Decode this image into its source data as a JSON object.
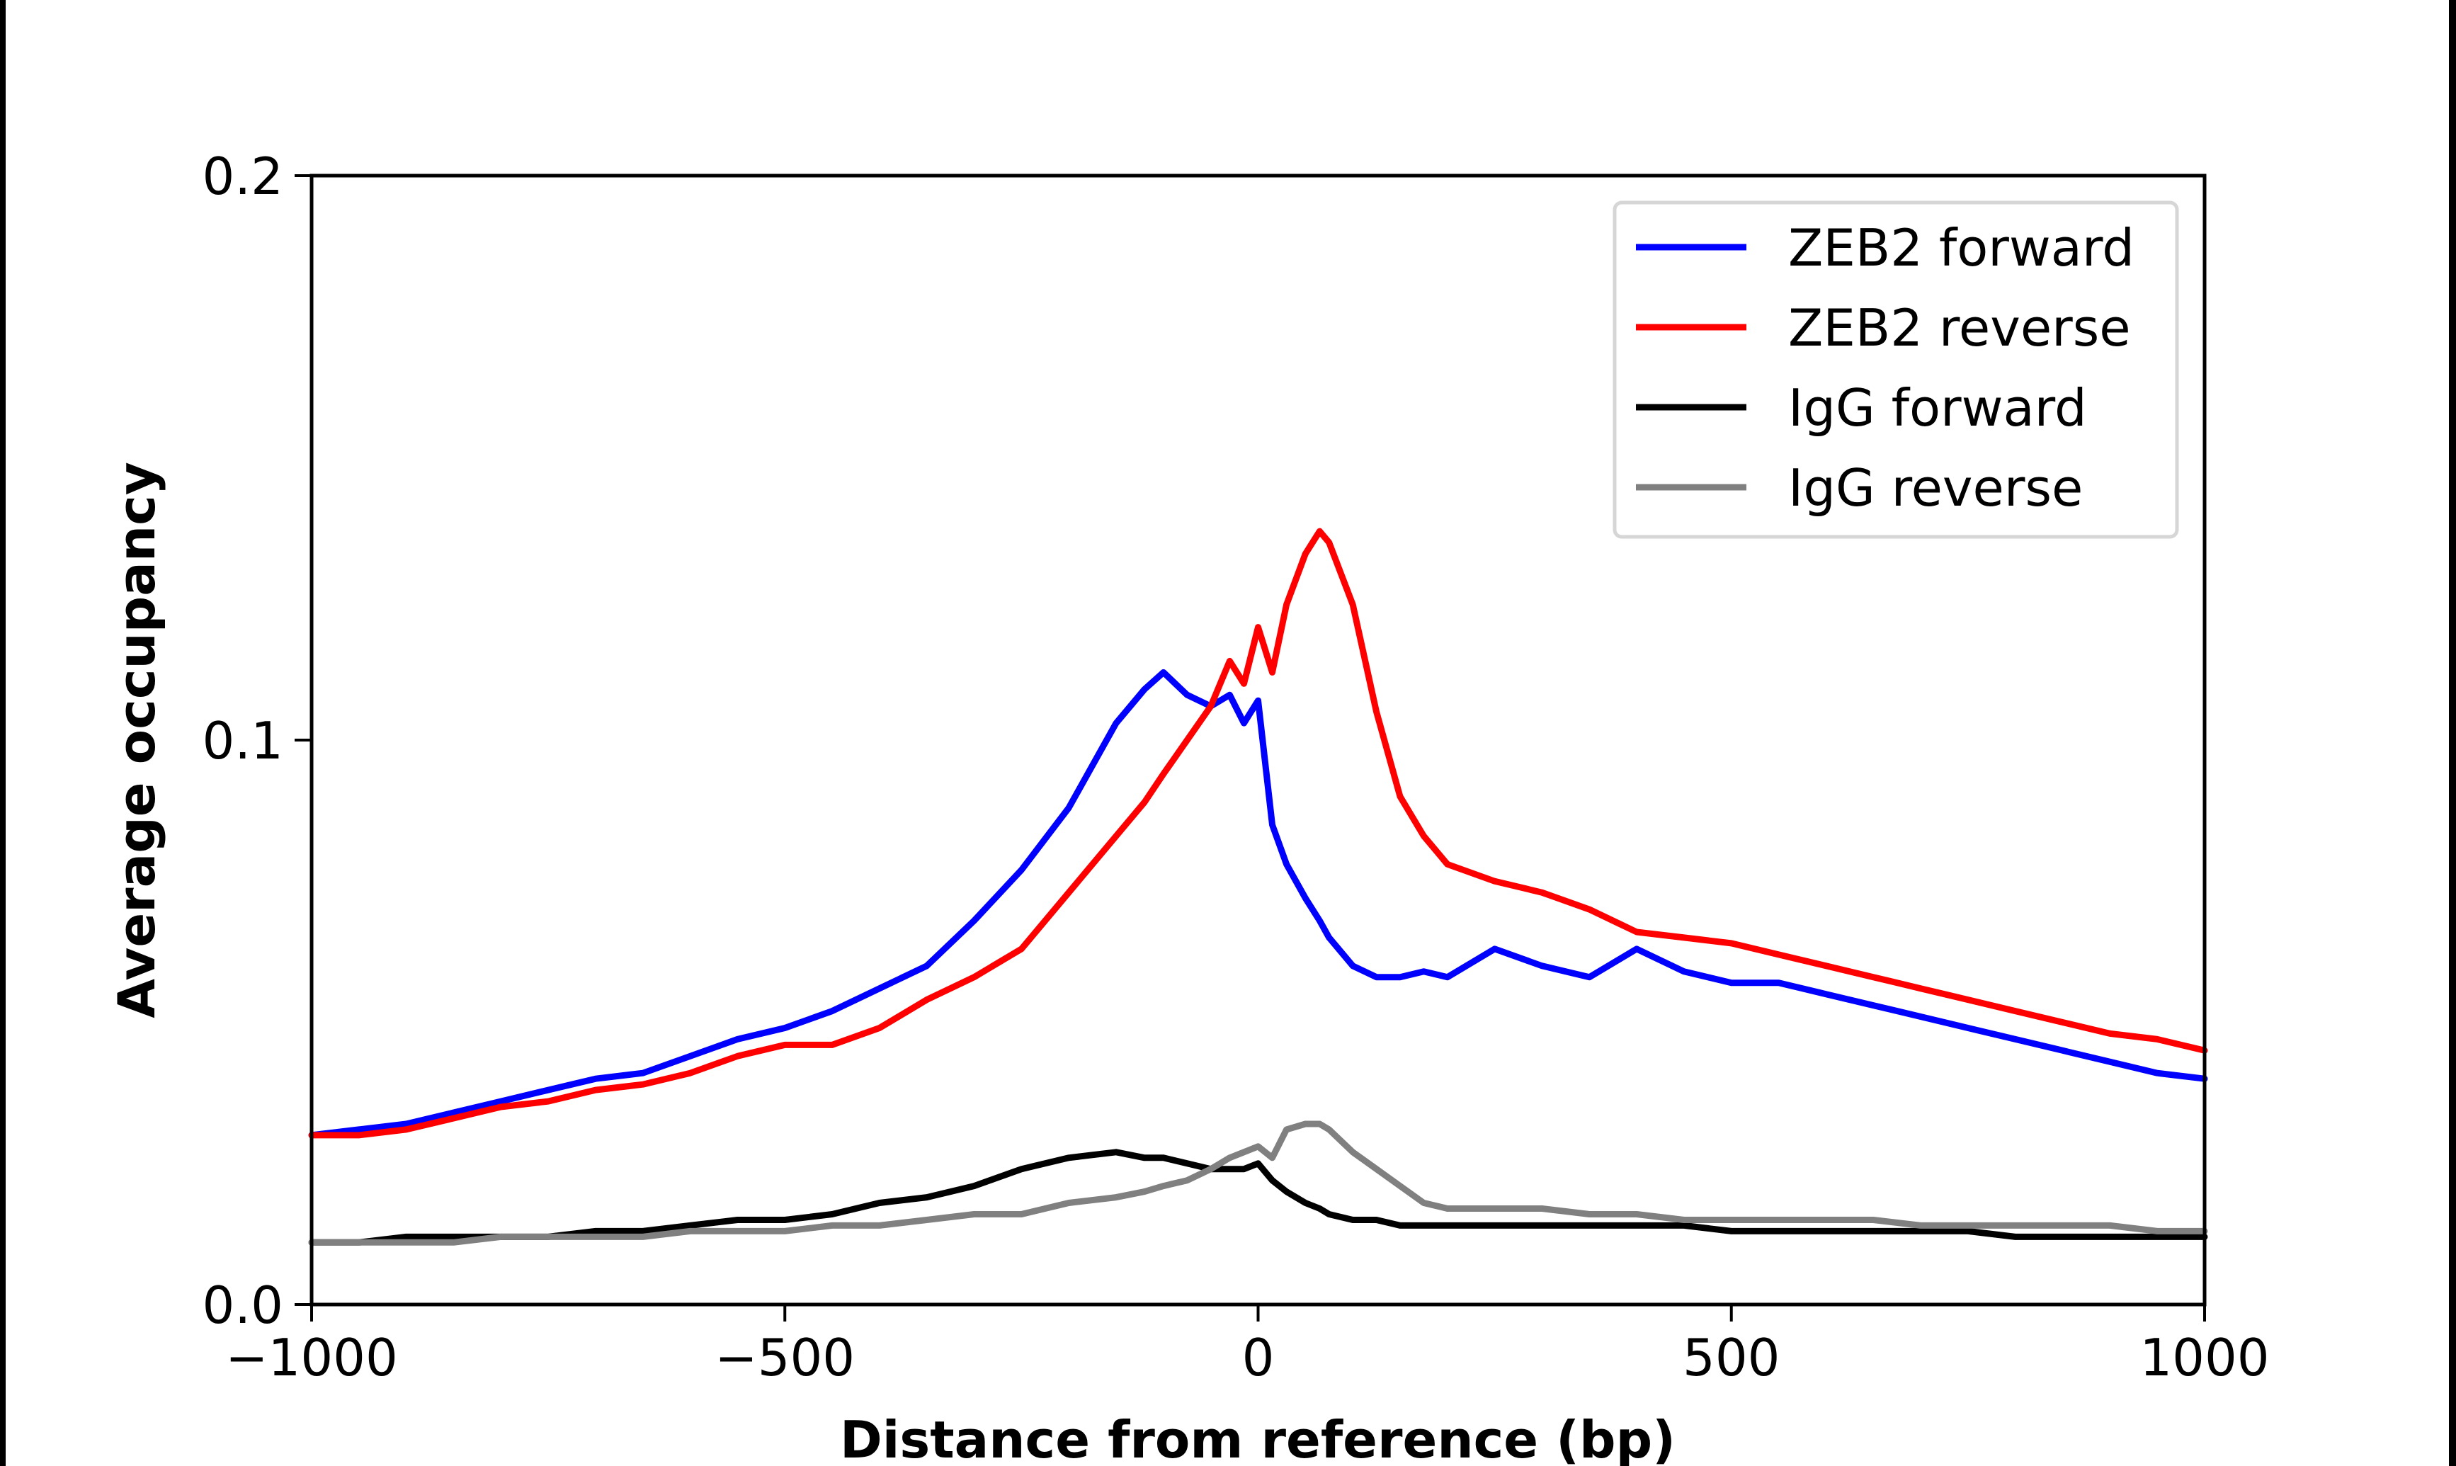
{
  "chart_data": {
    "type": "line",
    "title": "",
    "xlabel": "Distance from reference (bp)",
    "ylabel": "Average occupancy",
    "xlim": [
      -1000,
      1000
    ],
    "ylim": [
      0.0,
      0.2
    ],
    "xticks": [
      -1000,
      -500,
      0,
      500,
      1000
    ],
    "xtick_labels": [
      "−1000",
      "−500",
      "0",
      "500",
      "1000"
    ],
    "yticks": [
      0.0,
      0.1,
      0.2
    ],
    "ytick_labels": [
      "0.0",
      "0.1",
      "0.2"
    ],
    "grid": false,
    "legend_position": "top-right",
    "x": [
      -1000,
      -950,
      -900,
      -850,
      -800,
      -750,
      -700,
      -650,
      -600,
      -550,
      -500,
      -450,
      -400,
      -350,
      -300,
      -250,
      -200,
      -150,
      -120,
      -100,
      -75,
      -50,
      -30,
      -15,
      0,
      15,
      30,
      50,
      65,
      75,
      100,
      125,
      150,
      175,
      200,
      250,
      300,
      350,
      400,
      450,
      500,
      550,
      600,
      650,
      700,
      750,
      800,
      850,
      900,
      950,
      1000
    ],
    "series": [
      {
        "name": "ZEB2 forward",
        "color": "#0000ff",
        "values": [
          0.03,
          0.031,
          0.032,
          0.034,
          0.036,
          0.038,
          0.04,
          0.041,
          0.044,
          0.047,
          0.049,
          0.052,
          0.056,
          0.06,
          0.068,
          0.077,
          0.088,
          0.103,
          0.109,
          0.112,
          0.108,
          0.106,
          0.108,
          0.103,
          0.107,
          0.085,
          0.078,
          0.072,
          0.068,
          0.065,
          0.06,
          0.058,
          0.058,
          0.059,
          0.058,
          0.063,
          0.06,
          0.058,
          0.063,
          0.059,
          0.057,
          0.057,
          0.055,
          0.053,
          0.051,
          0.049,
          0.047,
          0.045,
          0.043,
          0.041,
          0.04
        ]
      },
      {
        "name": "ZEB2 reverse",
        "color": "#ff0000",
        "values": [
          0.03,
          0.03,
          0.031,
          0.033,
          0.035,
          0.036,
          0.038,
          0.039,
          0.041,
          0.044,
          0.046,
          0.046,
          0.049,
          0.054,
          0.058,
          0.063,
          0.073,
          0.083,
          0.089,
          0.094,
          0.1,
          0.106,
          0.114,
          0.11,
          0.12,
          0.112,
          0.124,
          0.133,
          0.137,
          0.135,
          0.124,
          0.105,
          0.09,
          0.083,
          0.078,
          0.075,
          0.073,
          0.07,
          0.066,
          0.065,
          0.064,
          0.062,
          0.06,
          0.058,
          0.056,
          0.054,
          0.052,
          0.05,
          0.048,
          0.047,
          0.045
        ]
      },
      {
        "name": "IgG forward",
        "color": "#000000",
        "values": [
          0.011,
          0.011,
          0.012,
          0.012,
          0.012,
          0.012,
          0.013,
          0.013,
          0.014,
          0.015,
          0.015,
          0.016,
          0.018,
          0.019,
          0.021,
          0.024,
          0.026,
          0.027,
          0.026,
          0.026,
          0.025,
          0.024,
          0.024,
          0.024,
          0.025,
          0.022,
          0.02,
          0.018,
          0.017,
          0.016,
          0.015,
          0.015,
          0.014,
          0.014,
          0.014,
          0.014,
          0.014,
          0.014,
          0.014,
          0.014,
          0.013,
          0.013,
          0.013,
          0.013,
          0.013,
          0.013,
          0.012,
          0.012,
          0.012,
          0.012,
          0.012
        ]
      },
      {
        "name": "IgG reverse",
        "color": "#808080",
        "values": [
          0.011,
          0.011,
          0.011,
          0.011,
          0.012,
          0.012,
          0.012,
          0.012,
          0.013,
          0.013,
          0.013,
          0.014,
          0.014,
          0.015,
          0.016,
          0.016,
          0.018,
          0.019,
          0.02,
          0.021,
          0.022,
          0.024,
          0.026,
          0.027,
          0.028,
          0.026,
          0.031,
          0.032,
          0.032,
          0.031,
          0.027,
          0.024,
          0.021,
          0.018,
          0.017,
          0.017,
          0.017,
          0.016,
          0.016,
          0.015,
          0.015,
          0.015,
          0.015,
          0.015,
          0.014,
          0.014,
          0.014,
          0.014,
          0.014,
          0.013,
          0.013
        ]
      }
    ]
  }
}
